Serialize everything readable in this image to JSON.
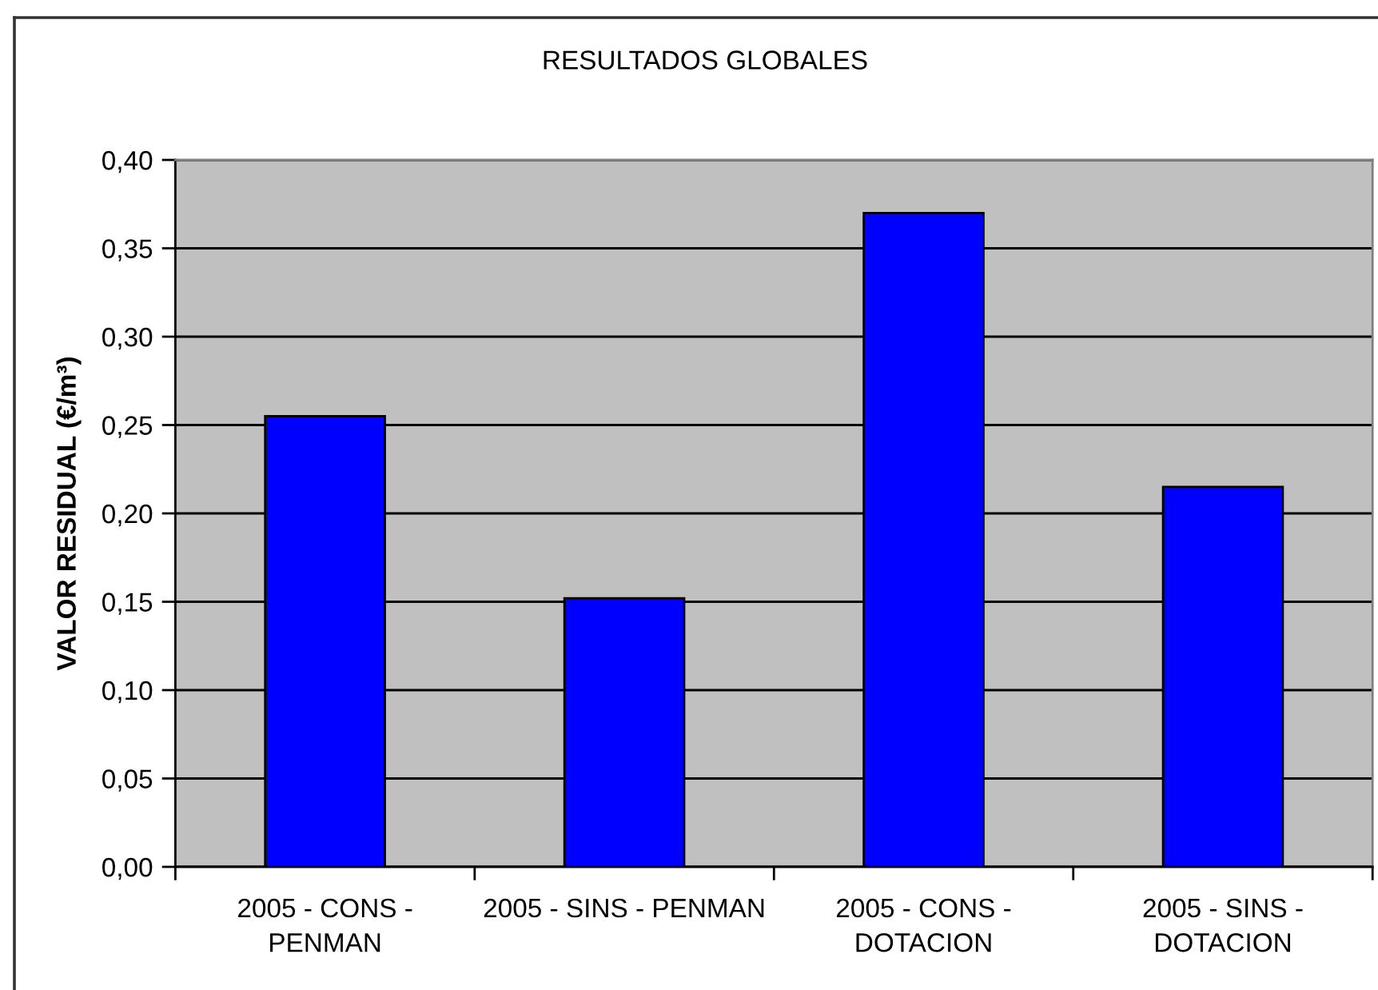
{
  "chart_data": {
    "type": "bar",
    "title": "RESULTADOS GLOBALES",
    "ylabel": "VALOR RESIDUAL (€/m³)",
    "categories": [
      "2005 - CONS -\nPENMAN",
      "2005 - SINS - PENMAN",
      "2005 - CONS -\nDOTACION",
      "2005 - SINS -\nDOTACION"
    ],
    "values": [
      0.255,
      0.152,
      0.37,
      0.215
    ],
    "color": "#0000ff",
    "ylim": [
      0,
      0.4
    ],
    "yticks": [
      {
        "value": 0,
        "label": "0,00"
      },
      {
        "value": 0.05,
        "label": "0,05"
      },
      {
        "value": 0.1,
        "label": "0,10"
      },
      {
        "value": 0.15,
        "label": "0,15"
      },
      {
        "value": 0.2,
        "label": "0,20"
      },
      {
        "value": 0.25,
        "label": "0,25"
      },
      {
        "value": 0.3,
        "label": "0,30"
      },
      {
        "value": 0.35,
        "label": "0,35"
      },
      {
        "value": 0.4,
        "label": "0,40"
      }
    ],
    "grid": "y"
  }
}
